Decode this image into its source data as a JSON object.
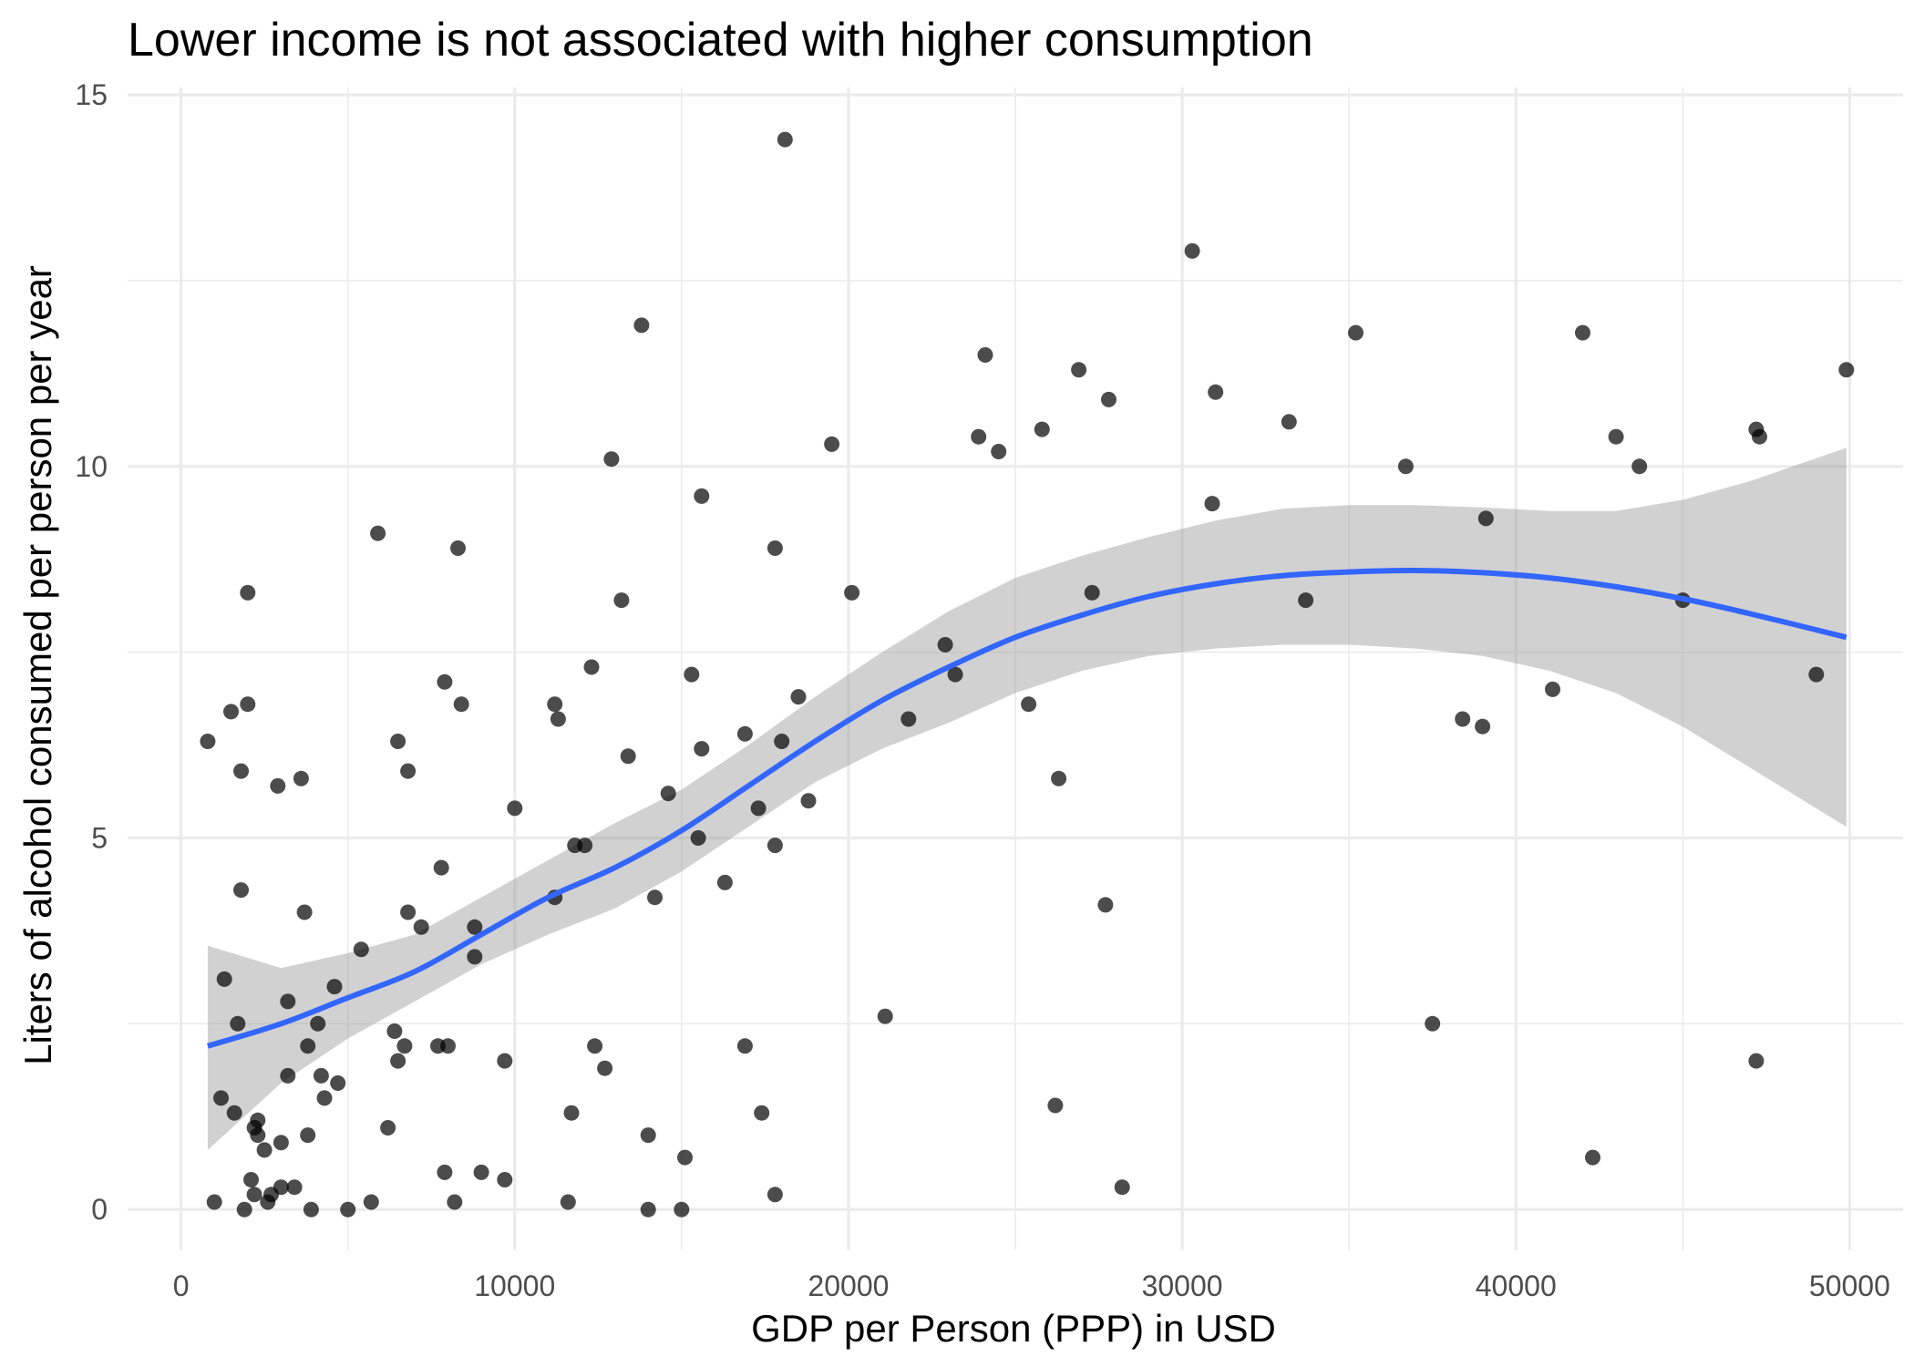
{
  "chart_data": {
    "type": "scatter",
    "title": "Lower income is not associated with higher consumption",
    "xlabel": "GDP per Person (PPP) in USD",
    "ylabel": "Liters of alcohol consumed per person per year",
    "xlim": [
      -1600,
      51600
    ],
    "ylim": [
      -0.55,
      15.1
    ],
    "x_ticks": [
      0,
      10000,
      20000,
      30000,
      40000,
      50000
    ],
    "x_tick_labels": [
      "0",
      "10000",
      "20000",
      "30000",
      "40000",
      "50000"
    ],
    "y_ticks": [
      0,
      5,
      10,
      15
    ],
    "y_tick_labels": [
      "0",
      "5",
      "10",
      "15"
    ],
    "grid": true,
    "legend": "none",
    "colors": {
      "points": "#000000",
      "smooth_line": "#3366FF",
      "ribbon": "#999999",
      "grid": "#EBEBEB",
      "background": "#FFFFFF"
    },
    "points": [
      [
        800,
        6.3
      ],
      [
        1000,
        0.1
      ],
      [
        1200,
        1.5
      ],
      [
        1300,
        3.1
      ],
      [
        1500,
        6.7
      ],
      [
        1600,
        1.3
      ],
      [
        1700,
        2.5
      ],
      [
        1800,
        5.9
      ],
      [
        1800,
        4.3
      ],
      [
        1900,
        0.0
      ],
      [
        2000,
        8.3
      ],
      [
        2000,
        6.8
      ],
      [
        2100,
        0.4
      ],
      [
        2200,
        1.1
      ],
      [
        2200,
        0.2
      ],
      [
        2300,
        1.2
      ],
      [
        2300,
        1.0
      ],
      [
        2500,
        0.8
      ],
      [
        2600,
        0.1
      ],
      [
        2700,
        0.2
      ],
      [
        2900,
        5.7
      ],
      [
        3000,
        0.9
      ],
      [
        3000,
        0.3
      ],
      [
        3200,
        1.8
      ],
      [
        3200,
        2.8
      ],
      [
        3400,
        0.3
      ],
      [
        3600,
        5.8
      ],
      [
        3700,
        4.0
      ],
      [
        3800,
        2.2
      ],
      [
        3800,
        1.0
      ],
      [
        3900,
        0.0
      ],
      [
        4100,
        2.5
      ],
      [
        4200,
        1.8
      ],
      [
        4300,
        1.5
      ],
      [
        4600,
        3.0
      ],
      [
        4700,
        1.7
      ],
      [
        5000,
        0.0
      ],
      [
        5400,
        3.5
      ],
      [
        5700,
        0.1
      ],
      [
        5900,
        9.1
      ],
      [
        6200,
        1.1
      ],
      [
        6400,
        2.4
      ],
      [
        6500,
        6.3
      ],
      [
        6500,
        2.0
      ],
      [
        6700,
        2.2
      ],
      [
        6800,
        4.0
      ],
      [
        6800,
        5.9
      ],
      [
        7200,
        3.8
      ],
      [
        7700,
        2.2
      ],
      [
        7800,
        4.6
      ],
      [
        7900,
        7.1
      ],
      [
        7900,
        0.5
      ],
      [
        8000,
        2.2
      ],
      [
        8200,
        0.1
      ],
      [
        8300,
        8.9
      ],
      [
        8400,
        6.8
      ],
      [
        8800,
        3.8
      ],
      [
        8800,
        3.4
      ],
      [
        9000,
        0.5
      ],
      [
        9700,
        2.0
      ],
      [
        9700,
        0.4
      ],
      [
        10000,
        5.4
      ],
      [
        11200,
        4.2
      ],
      [
        11200,
        6.8
      ],
      [
        11300,
        6.6
      ],
      [
        11600,
        0.1
      ],
      [
        11700,
        1.3
      ],
      [
        11800,
        4.9
      ],
      [
        12100,
        4.9
      ],
      [
        12300,
        7.3
      ],
      [
        12400,
        2.2
      ],
      [
        12700,
        1.9
      ],
      [
        12900,
        10.1
      ],
      [
        13200,
        8.2
      ],
      [
        13400,
        6.1
      ],
      [
        13800,
        11.9
      ],
      [
        14000,
        1.0
      ],
      [
        14000,
        0.0
      ],
      [
        14200,
        4.2
      ],
      [
        14600,
        5.6
      ],
      [
        15000,
        0.0
      ],
      [
        15100,
        0.7
      ],
      [
        15300,
        7.2
      ],
      [
        15500,
        5.0
      ],
      [
        15600,
        9.6
      ],
      [
        15600,
        6.2
      ],
      [
        16300,
        4.4
      ],
      [
        16900,
        6.4
      ],
      [
        16900,
        2.2
      ],
      [
        17300,
        5.4
      ],
      [
        17400,
        1.3
      ],
      [
        17800,
        8.9
      ],
      [
        17800,
        4.9
      ],
      [
        17800,
        0.2
      ],
      [
        18000,
        6.3
      ],
      [
        18100,
        14.4
      ],
      [
        18500,
        6.9
      ],
      [
        18800,
        5.5
      ],
      [
        19500,
        10.3
      ],
      [
        20100,
        8.3
      ],
      [
        21100,
        2.6
      ],
      [
        21800,
        6.6
      ],
      [
        22900,
        7.6
      ],
      [
        23200,
        7.2
      ],
      [
        23900,
        10.4
      ],
      [
        24100,
        11.5
      ],
      [
        24500,
        10.2
      ],
      [
        25400,
        6.8
      ],
      [
        25800,
        10.5
      ],
      [
        26200,
        1.4
      ],
      [
        26300,
        5.8
      ],
      [
        26900,
        11.3
      ],
      [
        27300,
        8.3
      ],
      [
        27700,
        4.1
      ],
      [
        27800,
        10.9
      ],
      [
        28200,
        0.3
      ],
      [
        30300,
        12.9
      ],
      [
        30900,
        9.5
      ],
      [
        31000,
        11.0
      ],
      [
        33200,
        10.6
      ],
      [
        33700,
        8.2
      ],
      [
        35200,
        11.8
      ],
      [
        36700,
        10.0
      ],
      [
        37500,
        2.5
      ],
      [
        38400,
        6.6
      ],
      [
        39000,
        6.5
      ],
      [
        39100,
        9.3
      ],
      [
        41100,
        7.0
      ],
      [
        42000,
        11.8
      ],
      [
        42300,
        0.7
      ],
      [
        43000,
        10.4
      ],
      [
        43700,
        10.0
      ],
      [
        45000,
        8.2
      ],
      [
        47200,
        10.5
      ],
      [
        47200,
        2.0
      ],
      [
        47300,
        10.4
      ],
      [
        49000,
        7.2
      ],
      [
        49900,
        11.3
      ]
    ],
    "smooth": {
      "x": [
        800,
        3000,
        5000,
        7000,
        9000,
        11000,
        13000,
        15000,
        17000,
        19000,
        21000,
        23000,
        25000,
        27000,
        29000,
        31000,
        33000,
        35000,
        37000,
        39000,
        41000,
        43000,
        45000,
        47000,
        49900
      ],
      "y": [
        2.2,
        2.5,
        2.85,
        3.2,
        3.7,
        4.2,
        4.6,
        5.1,
        5.7,
        6.3,
        6.85,
        7.3,
        7.7,
        8.0,
        8.25,
        8.42,
        8.53,
        8.58,
        8.6,
        8.57,
        8.5,
        8.38,
        8.22,
        8.02,
        7.7
      ],
      "lower": [
        0.8,
        1.7,
        2.3,
        2.8,
        3.3,
        3.7,
        4.05,
        4.55,
        5.15,
        5.75,
        6.2,
        6.55,
        6.95,
        7.25,
        7.45,
        7.55,
        7.6,
        7.6,
        7.55,
        7.45,
        7.25,
        6.95,
        6.5,
        5.95,
        5.15
      ],
      "upper": [
        3.55,
        3.25,
        3.45,
        3.7,
        4.2,
        4.7,
        5.2,
        5.65,
        6.25,
        6.9,
        7.5,
        8.05,
        8.5,
        8.8,
        9.05,
        9.27,
        9.43,
        9.48,
        9.48,
        9.45,
        9.4,
        9.4,
        9.55,
        9.8,
        10.25
      ]
    }
  }
}
